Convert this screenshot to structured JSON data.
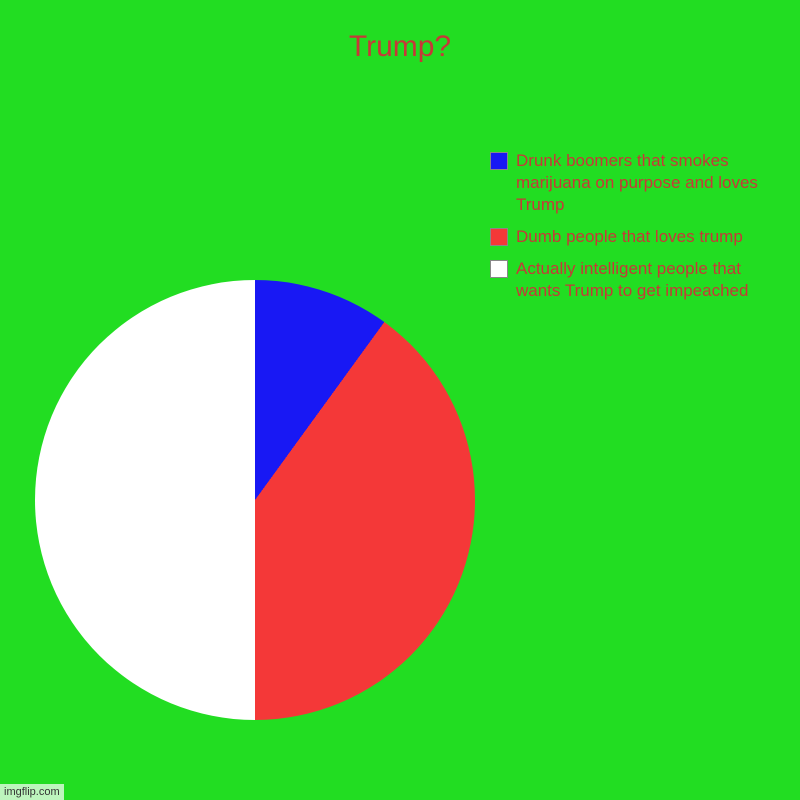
{
  "chart": {
    "type": "pie",
    "title": "Trump?",
    "title_color": "#c73838",
    "title_fontsize": 30,
    "background_color": "#22dd22",
    "text_color": "#c73838",
    "label_fontsize": 17,
    "pie_size": 440,
    "slices": [
      {
        "label": "Drunk boomers that smokes marijuana on purpose and loves Trump",
        "color": "#1818f4",
        "value": 10,
        "start_angle": 0,
        "end_angle": 36
      },
      {
        "label": "Dumb people that loves trump",
        "color": "#f43838",
        "value": 40,
        "start_angle": 36,
        "end_angle": 180
      },
      {
        "label": "Actually intelligent people that wants Trump to get impeached",
        "color": "#ffffff",
        "value": 50,
        "start_angle": 180,
        "end_angle": 360
      }
    ]
  },
  "watermark": "imgflip.com"
}
